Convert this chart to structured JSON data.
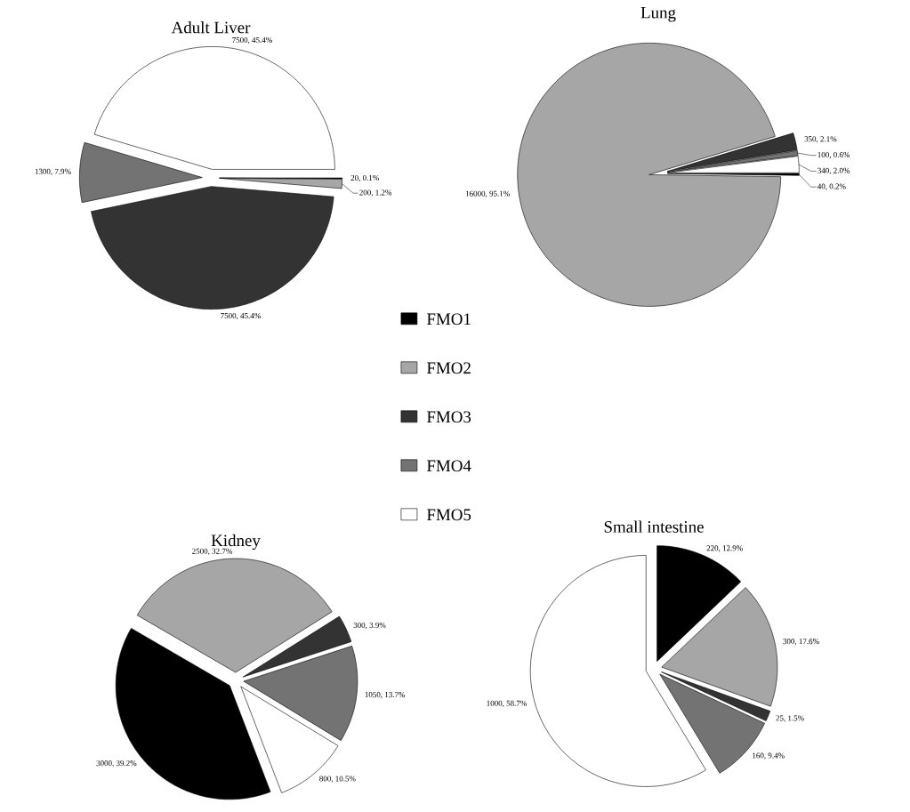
{
  "chart_data": [
    {
      "type": "pie",
      "title": "Adult Liver",
      "categories": [
        "FMO1",
        "FMO2",
        "FMO3",
        "FMO4",
        "FMO5"
      ],
      "values": [
        20,
        200,
        7500,
        1300,
        7500
      ],
      "value_labels": [
        "20, 0.1%",
        "200, 1.2%",
        "7500, 45.4%",
        "1300, 7.9%",
        "7500, 45.4%"
      ],
      "colors": [
        "#000000",
        "#a6a6a6",
        "#333333",
        "#737373",
        "#ffffff"
      ],
      "legend": "bottom right"
    },
    {
      "type": "pie",
      "title": "Lung",
      "categories": [
        null,
        null,
        null,
        null,
        null
      ],
      "values": [
        40,
        16000,
        350,
        100,
        340
      ],
      "value_labels": [
        "40, 0.2%",
        "16000, 95.1%",
        "350, 2.1%",
        "100, 0.6%",
        "340, 2.0%"
      ],
      "colors": [
        "#000000",
        "#a6a6a6",
        "#333333",
        "#737373",
        "#ffffff"
      ]
    },
    {
      "type": "pie",
      "title": "Kidney",
      "categories": [
        null,
        null,
        null,
        null,
        null
      ],
      "values": [
        3000,
        2500,
        300,
        1050,
        800
      ],
      "value_labels": [
        "3000, 39.2%",
        "2500, 32.7%",
        "300, 3.9%",
        "1050, 13.7%",
        "800, 10.5%"
      ],
      "colors": [
        "#000000",
        "#a6a6a6",
        "#333333",
        "#737373",
        "#ffffff"
      ]
    },
    {
      "type": "pie",
      "title": "Small intestine",
      "categories": [
        null,
        null,
        null,
        null,
        null
      ],
      "values": [
        220,
        300,
        25,
        160,
        1000
      ],
      "value_labels": [
        "220, 12.9%",
        "300, 17.6%",
        "25, 1.5%",
        "160, 9.4%",
        "1000, 58.7%"
      ],
      "colors": [
        "#000000",
        "#a6a6a6",
        "#333333",
        "#737373",
        "#ffffff"
      ]
    }
  ]
}
